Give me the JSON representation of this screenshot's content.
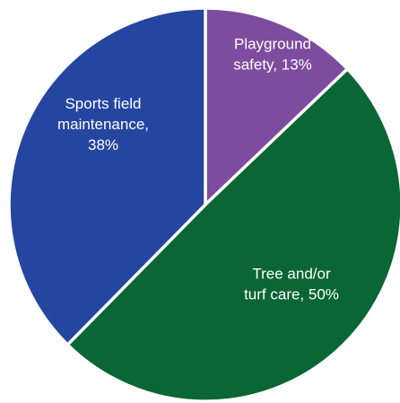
{
  "chart_data": {
    "type": "pie",
    "title": "",
    "slices": [
      {
        "category": "Playground safety",
        "value": 13,
        "label_lines": [
          "Playground",
          "safety, 13%"
        ],
        "color": "#7d4c9e"
      },
      {
        "category": "Tree and/or turf care",
        "value": 50,
        "label_lines": [
          "Tree and/or",
          "turf care, 50%"
        ],
        "color": "#0a6634"
      },
      {
        "category": "Sports field maintenance",
        "value": 38,
        "label_lines": [
          "Sports field",
          "maintenance,",
          "38%"
        ],
        "color": "#2446a0"
      }
    ]
  }
}
